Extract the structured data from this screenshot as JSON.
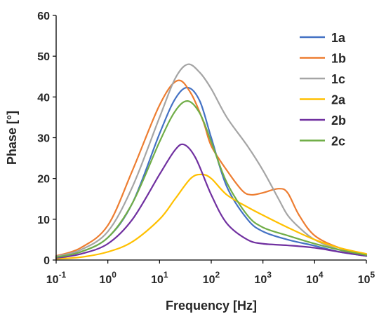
{
  "chart_data": {
    "type": "line",
    "xscale": "log",
    "xlim": [
      0.1,
      100000
    ],
    "ylim": [
      0,
      60
    ],
    "yticks": [
      0,
      10,
      20,
      30,
      40,
      50,
      60
    ],
    "xticks": [
      0.1,
      1,
      10,
      100,
      1000,
      10000,
      100000
    ],
    "xtick_labels": [
      {
        "base": "10",
        "exp": "-1"
      },
      {
        "base": "10",
        "exp": "0"
      },
      {
        "base": "10",
        "exp": "1"
      },
      {
        "base": "10",
        "exp": "2"
      },
      {
        "base": "10",
        "exp": "3"
      },
      {
        "base": "10",
        "exp": "4"
      },
      {
        "base": "10",
        "exp": "5"
      }
    ],
    "xlabel": "Frequency [Hz]",
    "ylabel": "Phase [°]",
    "grid": false,
    "legend_position": "top-right",
    "series": [
      {
        "name": "1a",
        "color": "#4472C4",
        "x": [
          0.1,
          0.3,
          1,
          3,
          10,
          20,
          35,
          60,
          100,
          200,
          500,
          1000,
          3000,
          10000,
          30000,
          100000
        ],
        "y": [
          0.8,
          2,
          5.5,
          14,
          31,
          39.5,
          42.3,
          39,
          30,
          18,
          10,
          7,
          5,
          3.5,
          2,
          1
        ]
      },
      {
        "name": "1b",
        "color": "#ED7D31",
        "x": [
          0.1,
          0.3,
          1,
          3,
          10,
          22,
          40,
          70,
          100,
          200,
          400,
          600,
          1000,
          2000,
          3000,
          5000,
          10000,
          30000,
          100000
        ],
        "y": [
          1,
          3,
          8.5,
          22,
          38,
          44,
          41,
          34,
          28,
          22,
          17,
          16,
          16.5,
          17.5,
          16.5,
          11,
          6,
          3,
          1.5
        ]
      },
      {
        "name": "1c",
        "color": "#A5A5A5",
        "x": [
          0.1,
          0.3,
          1,
          3,
          10,
          20,
          35,
          60,
          100,
          200,
          500,
          1000,
          2000,
          3000,
          5000,
          10000,
          30000,
          100000
        ],
        "y": [
          0.9,
          2.5,
          7,
          18,
          35,
          44.5,
          48,
          46,
          42,
          35,
          28,
          22,
          15,
          11,
          8,
          5,
          2.5,
          1
        ]
      },
      {
        "name": "2a",
        "color": "#FFC000",
        "x": [
          0.1,
          0.3,
          1,
          3,
          10,
          20,
          40,
          65,
          100,
          200,
          500,
          1000,
          3000,
          10000,
          30000,
          100000
        ],
        "y": [
          0.3,
          0.7,
          2,
          4.5,
          10,
          15,
          20,
          21,
          20,
          16,
          13,
          11,
          8,
          5,
          3,
          1.5
        ]
      },
      {
        "name": "2b",
        "color": "#7030A0",
        "x": [
          0.1,
          0.3,
          1,
          3,
          10,
          20,
          30,
          50,
          100,
          200,
          500,
          1000,
          3000,
          10000,
          30000,
          100000
        ],
        "y": [
          0.5,
          1.5,
          4,
          10,
          21,
          27,
          28.3,
          25,
          16,
          9,
          5,
          4,
          3.6,
          3,
          2,
          1
        ]
      },
      {
        "name": "2c",
        "color": "#70AD47",
        "x": [
          0.1,
          0.3,
          1,
          3,
          10,
          20,
          35,
          60,
          100,
          200,
          500,
          1000,
          3000,
          10000,
          30000,
          100000
        ],
        "y": [
          0.7,
          2,
          5.5,
          14,
          29,
          36.5,
          39,
          36,
          29,
          19,
          11,
          8,
          6,
          4,
          2.5,
          1.2
        ]
      }
    ]
  }
}
